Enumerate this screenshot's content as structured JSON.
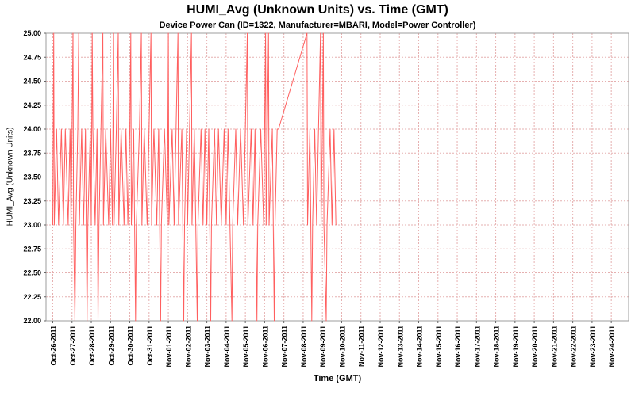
{
  "chart_data": {
    "type": "line",
    "title": "HUMI_Avg (Unknown Units) vs. Time (GMT)",
    "subtitle": "Device Power Can (ID=1322, Manufacturer=MBARI, Model=Power Controller)",
    "xlabel": "Time (GMT)",
    "ylabel": "HUMI_Avg (Unknown Units)",
    "ylim": [
      22.0,
      25.0
    ],
    "y_tick_labels": [
      "22.00",
      "22.25",
      "22.50",
      "22.75",
      "23.00",
      "23.25",
      "23.50",
      "23.75",
      "24.00",
      "24.25",
      "24.50",
      "24.75",
      "25.00"
    ],
    "x_tick_labels": [
      "Oct-26-2011",
      "Oct-27-2011",
      "Oct-28-2011",
      "Oct-29-2011",
      "Oct-30-2011",
      "Oct-31-2011",
      "Nov-01-2011",
      "Nov-02-2011",
      "Nov-03-2011",
      "Nov-04-2011",
      "Nov-05-2011",
      "Nov-06-2011",
      "Nov-07-2011",
      "Nov-08-2011",
      "Nov-09-2011",
      "Nov-10-2011",
      "Nov-11-2011",
      "Nov-12-2011",
      "Nov-13-2011",
      "Nov-14-2011",
      "Nov-15-2011",
      "Nov-16-2011",
      "Nov-17-2011",
      "Nov-18-2011",
      "Nov-19-2011",
      "Nov-20-2011",
      "Nov-21-2011",
      "Nov-22-2011",
      "Nov-23-2011",
      "Nov-24-2011"
    ],
    "x_range_days": [
      -0.35,
      29.9
    ],
    "grid": true,
    "legend": false,
    "colors": {
      "series": "#ff5f5f",
      "grid": "#e6b0b0",
      "plot_border": "#9c9c9c",
      "tick": "#666666",
      "text": "#000000"
    },
    "series": [
      {
        "name": "HUMI_Avg",
        "points": [
          [
            0.0,
            23
          ],
          [
            0.05,
            25
          ],
          [
            0.08,
            23
          ],
          [
            0.2,
            24
          ],
          [
            0.3,
            23
          ],
          [
            0.45,
            24
          ],
          [
            0.55,
            23
          ],
          [
            0.65,
            24
          ],
          [
            0.8,
            23
          ],
          [
            0.9,
            24
          ],
          [
            0.95,
            23
          ],
          [
            1.0,
            24
          ],
          [
            1.05,
            25
          ],
          [
            1.08,
            23
          ],
          [
            1.15,
            22
          ],
          [
            1.2,
            23
          ],
          [
            1.3,
            24
          ],
          [
            1.35,
            25
          ],
          [
            1.38,
            23
          ],
          [
            1.5,
            24
          ],
          [
            1.6,
            23
          ],
          [
            1.7,
            24
          ],
          [
            1.78,
            22
          ],
          [
            1.82,
            23
          ],
          [
            1.95,
            24
          ],
          [
            2.0,
            23
          ],
          [
            2.05,
            25
          ],
          [
            2.08,
            24
          ],
          [
            2.2,
            23
          ],
          [
            2.3,
            24
          ],
          [
            2.35,
            22
          ],
          [
            2.4,
            23
          ],
          [
            2.5,
            24
          ],
          [
            2.6,
            25
          ],
          [
            2.63,
            23
          ],
          [
            2.75,
            24
          ],
          [
            2.9,
            23
          ],
          [
            3.0,
            24
          ],
          [
            3.1,
            23
          ],
          [
            3.15,
            25
          ],
          [
            3.18,
            23
          ],
          [
            3.3,
            24
          ],
          [
            3.4,
            25
          ],
          [
            3.43,
            23
          ],
          [
            3.55,
            24
          ],
          [
            3.7,
            23
          ],
          [
            3.8,
            24
          ],
          [
            3.9,
            23
          ],
          [
            4.0,
            24
          ],
          [
            4.05,
            25
          ],
          [
            4.08,
            23
          ],
          [
            4.2,
            24
          ],
          [
            4.3,
            22
          ],
          [
            4.34,
            23
          ],
          [
            4.5,
            24
          ],
          [
            4.6,
            25
          ],
          [
            4.63,
            23
          ],
          [
            4.75,
            24
          ],
          [
            4.9,
            23
          ],
          [
            5.0,
            24
          ],
          [
            5.1,
            25
          ],
          [
            5.13,
            23
          ],
          [
            5.25,
            24
          ],
          [
            5.4,
            23
          ],
          [
            5.5,
            24
          ],
          [
            5.6,
            22
          ],
          [
            5.64,
            23
          ],
          [
            5.8,
            24
          ],
          [
            5.95,
            23
          ],
          [
            6.0,
            25
          ],
          [
            6.03,
            23
          ],
          [
            6.2,
            24
          ],
          [
            6.3,
            23
          ],
          [
            6.4,
            24
          ],
          [
            6.5,
            25
          ],
          [
            6.53,
            23
          ],
          [
            6.7,
            24
          ],
          [
            6.8,
            22
          ],
          [
            6.84,
            23
          ],
          [
            6.95,
            24
          ],
          [
            7.0,
            23
          ],
          [
            7.1,
            24
          ],
          [
            7.2,
            25
          ],
          [
            7.23,
            23
          ],
          [
            7.35,
            24
          ],
          [
            7.5,
            22
          ],
          [
            7.54,
            23
          ],
          [
            7.7,
            24
          ],
          [
            7.8,
            23
          ],
          [
            7.9,
            24
          ],
          [
            8.0,
            23
          ],
          [
            8.1,
            24
          ],
          [
            8.2,
            22
          ],
          [
            8.24,
            23
          ],
          [
            8.4,
            24
          ],
          [
            8.5,
            23
          ],
          [
            8.6,
            24
          ],
          [
            8.75,
            23
          ],
          [
            8.9,
            24
          ],
          [
            9.0,
            23
          ],
          [
            9.1,
            24
          ],
          [
            9.2,
            23
          ],
          [
            9.3,
            22
          ],
          [
            9.34,
            23
          ],
          [
            9.5,
            24
          ],
          [
            9.6,
            23
          ],
          [
            9.75,
            24
          ],
          [
            9.9,
            23
          ],
          [
            10.0,
            24
          ],
          [
            10.1,
            25
          ],
          [
            10.13,
            23
          ],
          [
            10.3,
            24
          ],
          [
            10.4,
            23
          ],
          [
            10.5,
            24
          ],
          [
            10.6,
            22
          ],
          [
            10.64,
            23
          ],
          [
            10.8,
            24
          ],
          [
            10.95,
            23
          ],
          [
            11.0,
            24
          ],
          [
            11.05,
            25
          ],
          [
            11.08,
            23
          ],
          [
            11.2,
            25
          ],
          [
            11.23,
            23
          ],
          [
            11.4,
            24
          ],
          [
            11.5,
            22
          ],
          [
            11.54,
            23
          ],
          [
            11.65,
            24
          ],
          [
            11.72,
            24
          ],
          [
            13.2,
            25
          ],
          [
            13.23,
            23
          ],
          [
            13.35,
            24
          ],
          [
            13.45,
            22
          ],
          [
            13.49,
            23
          ],
          [
            13.6,
            24
          ],
          [
            13.7,
            23
          ],
          [
            13.8,
            24
          ],
          [
            13.9,
            25
          ],
          [
            13.93,
            23
          ],
          [
            14.0,
            24
          ],
          [
            14.05,
            25
          ],
          [
            14.08,
            23
          ],
          [
            14.2,
            22
          ],
          [
            14.24,
            23
          ],
          [
            14.4,
            24
          ],
          [
            14.5,
            23
          ],
          [
            14.6,
            24
          ],
          [
            14.7,
            23
          ]
        ]
      }
    ]
  }
}
